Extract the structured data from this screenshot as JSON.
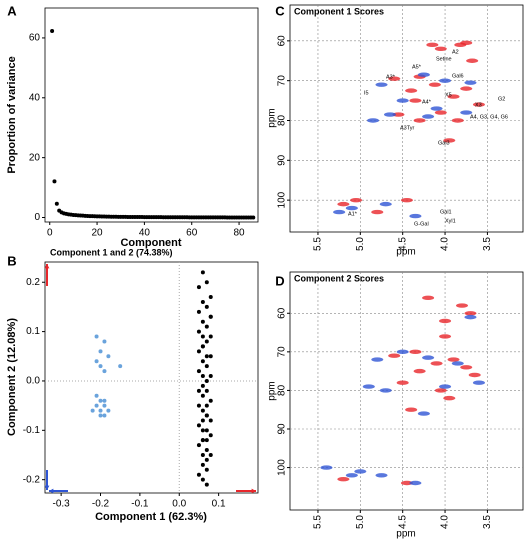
{
  "chart_data": [
    {
      "type": "scatter",
      "panel": "A",
      "x_label": "Component",
      "y_label": "Proportion of variance",
      "color": "#000000",
      "x": [
        1,
        2,
        3,
        4,
        5,
        6,
        7,
        8,
        9,
        10,
        11,
        12,
        13,
        14,
        15,
        16,
        17,
        18,
        19,
        20,
        21,
        22,
        23,
        24,
        25,
        26,
        27,
        28,
        29,
        30,
        31,
        32,
        33,
        34,
        35,
        36,
        37,
        38,
        39,
        40,
        41,
        42,
        43,
        44,
        45,
        46,
        47,
        48,
        49,
        50,
        51,
        52,
        53,
        54,
        55,
        56,
        57,
        58,
        59,
        60,
        61,
        62,
        63,
        64,
        65,
        66,
        67,
        68,
        69,
        70,
        71,
        72,
        73,
        74,
        75,
        76,
        77,
        78,
        79,
        80,
        81,
        82,
        83,
        84,
        85,
        86
      ],
      "values": [
        62.3,
        12.08,
        4.6,
        2.3,
        1.7,
        1.4,
        1.2,
        1.05,
        0.95,
        0.85,
        0.78,
        0.72,
        0.66,
        0.61,
        0.56,
        0.52,
        0.48,
        0.45,
        0.42,
        0.39,
        0.36,
        0.34,
        0.32,
        0.3,
        0.28,
        0.26,
        0.25,
        0.24,
        0.23,
        0.22,
        0.21,
        0.2,
        0.19,
        0.18,
        0.18,
        0.17,
        0.16,
        0.16,
        0.15,
        0.14,
        0.14,
        0.13,
        0.13,
        0.12,
        0.12,
        0.11,
        0.11,
        0.1,
        0.1,
        0.1,
        0.09,
        0.09,
        0.08,
        0.08,
        0.08,
        0.07,
        0.07,
        0.07,
        0.06,
        0.06,
        0.06,
        0.05,
        0.05,
        0.05,
        0.05,
        0.04,
        0.04,
        0.04,
        0.04,
        0.03,
        0.03,
        0.03,
        0.03,
        0.03,
        0.02,
        0.02,
        0.02,
        0.02,
        0.02,
        0.01,
        0.01,
        0.01,
        0.01,
        0.01,
        0.01,
        0.0
      ],
      "xlim": [
        -2,
        88
      ],
      "ylim": [
        -1.5,
        70
      ],
      "xticks": [
        0,
        20,
        40,
        60,
        80
      ],
      "yticks": [
        0,
        20,
        40,
        60
      ],
      "grid": false
    },
    {
      "type": "scatter",
      "panel": "B",
      "title": "Component 1 and 2 (74.38%)",
      "x_label": "Component 1 (62.3%)",
      "y_label": "Component 2 (12.08%)",
      "xlim": [
        -0.341,
        0.2
      ],
      "ylim": [
        -0.227,
        0.241
      ],
      "xticks": [
        -0.3,
        -0.2,
        -0.1,
        {
          "value": 0,
          "label": "0.0"
        },
        0.1
      ],
      "yticks": [
        -0.2,
        -0.1,
        {
          "value": 0,
          "label": "0.0"
        },
        0.1,
        0.2
      ],
      "grid": false,
      "zero_lines": true,
      "series": [
        {
          "color": "#6aa3dc",
          "x": [
            -0.21,
            -0.19,
            -0.2,
            -0.18,
            -0.2,
            -0.19,
            -0.15,
            -0.21,
            -0.21,
            -0.2,
            -0.19,
            -0.21,
            -0.2,
            -0.19,
            -0.18,
            -0.2,
            -0.19,
            -0.22
          ],
          "values": [
            0.09,
            0.08,
            0.06,
            0.05,
            0.03,
            0.02,
            0.03,
            0.04,
            -0.03,
            -0.04,
            -0.04,
            -0.05,
            -0.06,
            -0.05,
            -0.06,
            -0.07,
            -0.07,
            -0.06
          ]
        },
        {
          "color": "#000000",
          "x": [
            0.06,
            0.07,
            0.05,
            0.08,
            0.06,
            0.07,
            0.05,
            0.08,
            0.06,
            0.07,
            0.05,
            0.06,
            0.08,
            0.07,
            0.06,
            0.05,
            0.07,
            0.08,
            0.06,
            0.07,
            0.05,
            0.06,
            0.08,
            0.07,
            0.06,
            0.05,
            0.07,
            0.06,
            0.08,
            0.07,
            0.05,
            0.06,
            0.07,
            0.08,
            0.06,
            0.05,
            0.07,
            0.06,
            0.08,
            0.07,
            0.06,
            0.05,
            0.07,
            0.06,
            0.08,
            0.07,
            0.06,
            0.07,
            0.05,
            0.06,
            0.07,
            0.08,
            0.06,
            0.07,
            0.06
          ],
          "values": [
            0.22,
            0.2,
            0.19,
            0.17,
            0.16,
            0.15,
            0.14,
            0.13,
            0.12,
            0.11,
            0.1,
            0.09,
            0.09,
            0.08,
            0.07,
            0.06,
            0.05,
            0.05,
            0.04,
            0.03,
            0.02,
            0.01,
            0.01,
            0.0,
            -0.01,
            -0.02,
            -0.02,
            -0.03,
            -0.04,
            -0.05,
            -0.05,
            -0.06,
            -0.07,
            -0.08,
            -0.08,
            -0.09,
            -0.1,
            -0.1,
            -0.11,
            -0.12,
            -0.12,
            -0.13,
            -0.14,
            -0.15,
            -0.15,
            -0.16,
            -0.17,
            -0.18,
            -0.19,
            -0.2,
            -0.21,
            0.13,
            0.07,
            -0.07,
            -0.12
          ]
        }
      ]
    },
    {
      "type": "scatter",
      "panel": "C",
      "title": "Component 1 Scores",
      "x_label": "ppm",
      "y_label": "ppm",
      "marker": "ellipse",
      "xlim": [
        5.83,
        3.08
      ],
      "ylim": [
        108,
        51
      ],
      "xticks": [
        5.5,
        {
          "value": 5,
          "label": "5.0"
        },
        4.5,
        {
          "value": 4,
          "label": "4.0"
        },
        3.5
      ],
      "yticks": [
        60,
        70,
        80,
        90,
        100
      ],
      "grid": true,
      "annotations": [
        "A2",
        "Setine",
        "Gal6",
        "X5",
        "A5*",
        "I5",
        "A3*",
        "G2",
        "X3",
        "A4*",
        "Gal3",
        "A3Tyr",
        "A4, G3, G4, G6",
        "Gal1",
        "Xyl1",
        "A1*",
        "G-Gal"
      ],
      "series": [
        {
          "color": "#e8262b",
          "x": [
            3.82,
            3.75,
            4.05,
            3.68,
            4.3,
            4.6,
            4.12,
            3.75,
            4.4,
            3.9,
            3.6,
            4.05,
            4.55,
            4.3,
            3.95,
            3.85,
            4.8,
            4.45,
            5.05,
            5.2,
            4.15,
            4.35
          ],
          "values": [
            61,
            60.5,
            62,
            65,
            69,
            69.5,
            71,
            72,
            72.5,
            74,
            76,
            78,
            78.5,
            80,
            85,
            80,
            103,
            100,
            100,
            101,
            61,
            75
          ]
        },
        {
          "color": "#2f55d4",
          "x": [
            4.25,
            4.75,
            4.5,
            4.0,
            4.1,
            4.65,
            4.85,
            4.7,
            5.1,
            5.25,
            4.35,
            3.75,
            4.2,
            3.7
          ],
          "values": [
            68.5,
            71,
            75,
            70,
            77,
            78.5,
            80,
            101,
            102,
            103,
            104,
            78,
            79,
            70.5
          ]
        }
      ]
    },
    {
      "type": "scatter",
      "panel": "D",
      "title": "Component 2 Scores",
      "x_label": "ppm",
      "y_label": "ppm",
      "marker": "ellipse",
      "xlim": [
        5.83,
        3.08
      ],
      "ylim": [
        111,
        49.3
      ],
      "xticks": [
        5.5,
        {
          "value": 5,
          "label": "5.0"
        },
        4.5,
        {
          "value": 4,
          "label": "4.0"
        },
        3.5
      ],
      "yticks": [
        60,
        70,
        80,
        90,
        100
      ],
      "grid": true,
      "series": [
        {
          "color": "#e8262b",
          "x": [
            4.2,
            3.8,
            3.7,
            4.0,
            4.35,
            4.6,
            3.9,
            4.1,
            3.75,
            4.3,
            3.65,
            4.5,
            4.05,
            3.95,
            4.4,
            4.45,
            5.2,
            4.0
          ],
          "values": [
            56,
            58,
            60,
            62,
            70,
            71,
            72,
            73,
            74,
            75,
            76,
            78,
            80,
            82,
            85,
            104,
            103,
            66
          ]
        },
        {
          "color": "#2f55d4",
          "x": [
            4.8,
            4.5,
            4.2,
            3.85,
            4.0,
            4.7,
            4.9,
            4.25,
            3.7,
            5.1,
            5.4,
            4.75,
            4.35,
            5.0,
            3.6
          ],
          "values": [
            72,
            70,
            71.5,
            73,
            79,
            80,
            79,
            86,
            61,
            102,
            100,
            102,
            104,
            101,
            78
          ]
        }
      ]
    }
  ]
}
